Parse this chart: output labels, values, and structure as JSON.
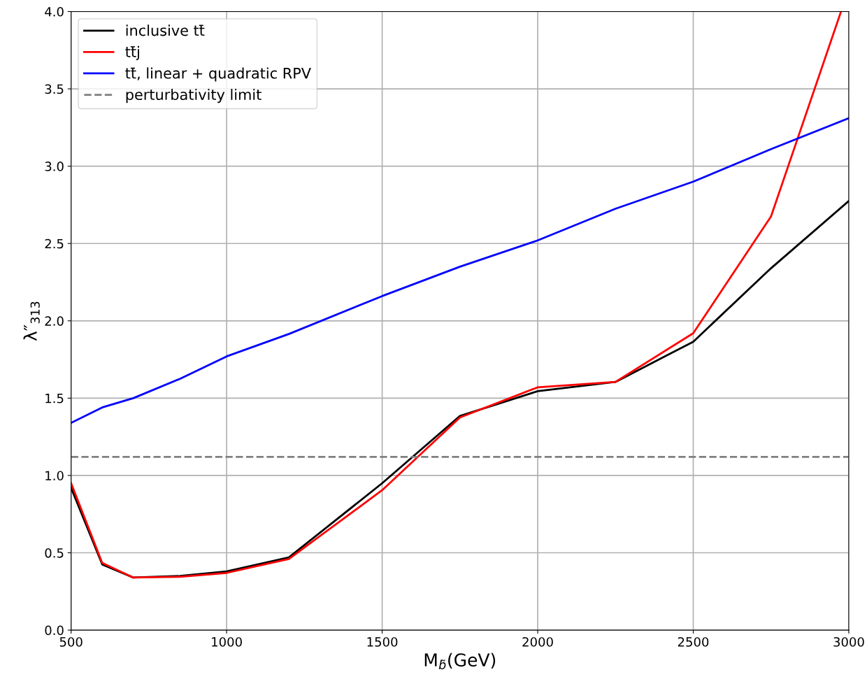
{
  "chart_data": {
    "type": "line",
    "xlabel": "M$_{b̃}$(GeV)",
    "ylabel": "λ″$_{313}$",
    "x": [
      500,
      600,
      700,
      850,
      1000,
      1200,
      1500,
      1750,
      2000,
      2250,
      2500,
      2750,
      3000
    ],
    "series": [
      {
        "name": "inclusive tt̄",
        "color": "#000000",
        "values": [
          0.92,
          0.425,
          0.34,
          0.35,
          0.38,
          0.47,
          0.95,
          1.385,
          1.545,
          1.605,
          1.865,
          2.34,
          2.775
        ]
      },
      {
        "name": "tt̄j",
        "color": "#ff0000",
        "x": [
          500,
          600,
          700,
          850,
          1000,
          1200,
          1500,
          1750,
          2000,
          2250,
          2500,
          2750,
          2975
        ],
        "values": [
          0.95,
          0.435,
          0.34,
          0.345,
          0.37,
          0.46,
          0.905,
          1.375,
          1.57,
          1.605,
          1.92,
          2.675,
          4.0
        ]
      },
      {
        "name": "tt̄, linear + quadratic RPV",
        "color": "#0000ff",
        "values": [
          1.34,
          1.44,
          1.5,
          1.625,
          1.77,
          1.915,
          2.16,
          2.35,
          2.52,
          2.725,
          2.9,
          3.11,
          3.31
        ]
      }
    ],
    "ref_lines": [
      {
        "axis": "y",
        "value": 1.12,
        "label": "perturbativity limit",
        "color": "#808080",
        "line_style": "dashed"
      }
    ],
    "xlim": [
      500,
      3000
    ],
    "ylim": [
      0,
      4.0
    ],
    "xticks": [
      500,
      1000,
      1500,
      2000,
      2500,
      3000
    ],
    "yticks": [
      {
        "value": 0,
        "label": "0.0"
      },
      0.5,
      {
        "value": 1,
        "label": "1.0"
      },
      1.5,
      {
        "value": 2,
        "label": "2.0"
      },
      2.5,
      {
        "value": 3,
        "label": "3.0"
      },
      3.5,
      {
        "value": 4,
        "label": "4.0"
      }
    ],
    "grid": true,
    "legend": "top left",
    "marker": "none",
    "line_style": "solid"
  }
}
